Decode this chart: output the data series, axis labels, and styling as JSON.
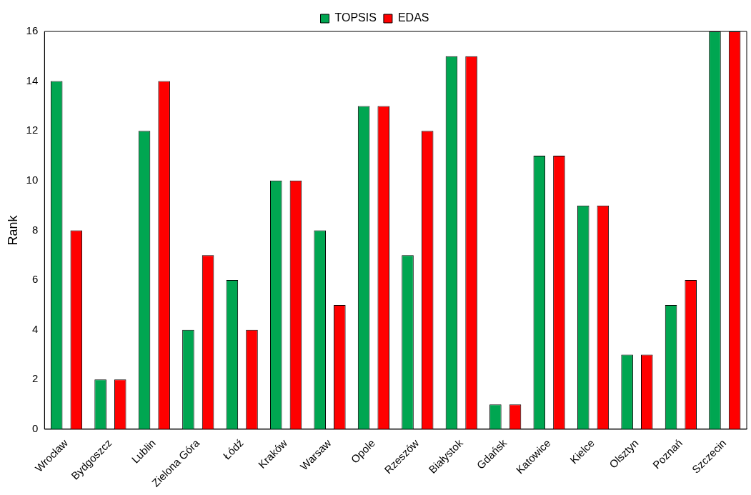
{
  "chart_data": {
    "type": "bar",
    "ylabel": "Rank",
    "categories": [
      "Wrocław",
      "Bydgoszcz",
      "Lublin",
      "Zielona Góra",
      "Łódź",
      "Kraków",
      "Warsaw",
      "Opole",
      "Rzeszów",
      "Białystok",
      "Gdańsk",
      "Katowice",
      "Kielce",
      "Olsztyn",
      "Poznań",
      "Szczecin"
    ],
    "series": [
      {
        "name": "TOPSIS",
        "color": "#00a651",
        "values": [
          14,
          2,
          12,
          4,
          6,
          10,
          8,
          13,
          7,
          15,
          1,
          11,
          9,
          3,
          5,
          16
        ]
      },
      {
        "name": "EDAS",
        "color": "#ff0000",
        "values": [
          8,
          2,
          14,
          7,
          4,
          10,
          5,
          13,
          12,
          15,
          1,
          11,
          9,
          3,
          6,
          16
        ]
      }
    ],
    "ylim": [
      0,
      16
    ],
    "yticks": [
      0,
      2,
      4,
      6,
      8,
      10,
      12,
      14,
      16
    ],
    "grid": false,
    "legend": "top"
  }
}
